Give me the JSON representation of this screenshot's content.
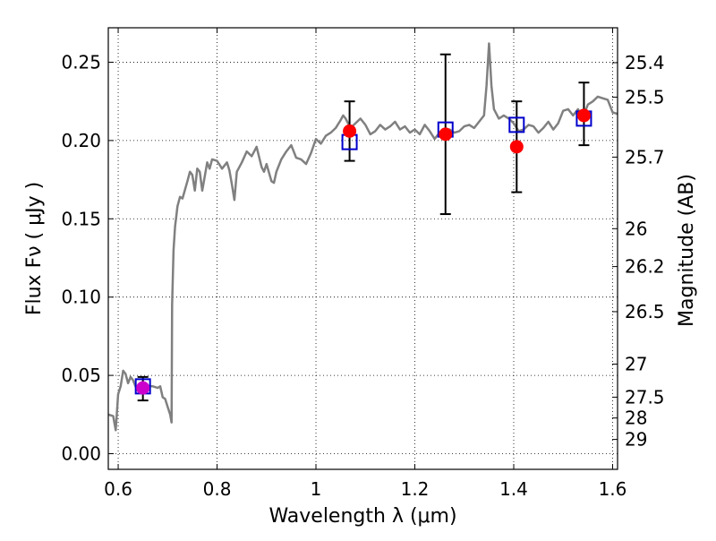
{
  "chart_data": {
    "type": "scatter",
    "title": "",
    "xlabel": "Wavelength  λ (μm)",
    "ylabel": "Flux  Fν  ( μJy )",
    "ylabel_right": "Magnitude (AB)",
    "xlim": [
      0.58,
      1.61
    ],
    "ylim": [
      -0.01,
      0.272
    ],
    "grid": true,
    "x_ticks": [
      0.6,
      0.8,
      1.0,
      1.2,
      1.4,
      1.6
    ],
    "x_tick_labels": [
      "0.6",
      "0.8",
      "1",
      "1.2",
      "1.4",
      "1.6"
    ],
    "y_ticks": [
      0.0,
      0.05,
      0.1,
      0.15,
      0.2,
      0.25
    ],
    "y_tick_labels": [
      "0.00",
      "0.05",
      "0.10",
      "0.15",
      "0.20",
      "0.25"
    ],
    "right_ticks": [
      {
        "label": "25.4",
        "flux": 0.2497
      },
      {
        "label": "25.5",
        "flux": 0.2277
      },
      {
        "label": "25.7",
        "flux": 0.1894
      },
      {
        "label": "26",
        "flux": 0.1437
      },
      {
        "label": "26.2",
        "flux": 0.1195
      },
      {
        "label": "26.5",
        "flux": 0.0907
      },
      {
        "label": "27",
        "flux": 0.0572
      },
      {
        "label": "27.5",
        "flux": 0.0361
      },
      {
        "label": "28",
        "flux": 0.0228
      },
      {
        "label": "29",
        "flux": 0.0091
      }
    ],
    "model_spectrum": {
      "color": "#808080",
      "points": [
        [
          0.58,
          0.025
        ],
        [
          0.59,
          0.024
        ],
        [
          0.595,
          0.015
        ],
        [
          0.6,
          0.038
        ],
        [
          0.605,
          0.043
        ],
        [
          0.61,
          0.053
        ],
        [
          0.615,
          0.051
        ],
        [
          0.62,
          0.045
        ],
        [
          0.625,
          0.049
        ],
        [
          0.63,
          0.047
        ],
        [
          0.635,
          0.043
        ],
        [
          0.64,
          0.04
        ],
        [
          0.65,
          0.04
        ],
        [
          0.66,
          0.043
        ],
        [
          0.67,
          0.043
        ],
        [
          0.68,
          0.042
        ],
        [
          0.685,
          0.043
        ],
        [
          0.69,
          0.036
        ],
        [
          0.695,
          0.035
        ],
        [
          0.7,
          0.03
        ],
        [
          0.705,
          0.025
        ],
        [
          0.708,
          0.02
        ],
        [
          0.709,
          0.095
        ],
        [
          0.712,
          0.13
        ],
        [
          0.715,
          0.145
        ],
        [
          0.72,
          0.158
        ],
        [
          0.725,
          0.164
        ],
        [
          0.73,
          0.163
        ],
        [
          0.74,
          0.174
        ],
        [
          0.745,
          0.18
        ],
        [
          0.75,
          0.178
        ],
        [
          0.755,
          0.168
        ],
        [
          0.76,
          0.182
        ],
        [
          0.765,
          0.18
        ],
        [
          0.77,
          0.168
        ],
        [
          0.78,
          0.186
        ],
        [
          0.785,
          0.182
        ],
        [
          0.79,
          0.188
        ],
        [
          0.8,
          0.187
        ],
        [
          0.81,
          0.182
        ],
        [
          0.82,
          0.186
        ],
        [
          0.825,
          0.181
        ],
        [
          0.83,
          0.172
        ],
        [
          0.835,
          0.162
        ],
        [
          0.84,
          0.18
        ],
        [
          0.85,
          0.186
        ],
        [
          0.86,
          0.193
        ],
        [
          0.87,
          0.19
        ],
        [
          0.88,
          0.196
        ],
        [
          0.89,
          0.183
        ],
        [
          0.895,
          0.18
        ],
        [
          0.9,
          0.185
        ],
        [
          0.91,
          0.174
        ],
        [
          0.915,
          0.173
        ],
        [
          0.92,
          0.18
        ],
        [
          0.93,
          0.188
        ],
        [
          0.94,
          0.193
        ],
        [
          0.95,
          0.197
        ],
        [
          0.96,
          0.189
        ],
        [
          0.97,
          0.188
        ],
        [
          0.98,
          0.185
        ],
        [
          0.99,
          0.192
        ],
        [
          1.0,
          0.201
        ],
        [
          1.01,
          0.198
        ],
        [
          1.02,
          0.203
        ],
        [
          1.03,
          0.205
        ],
        [
          1.04,
          0.208
        ],
        [
          1.05,
          0.213
        ],
        [
          1.055,
          0.216
        ],
        [
          1.06,
          0.214
        ],
        [
          1.07,
          0.208
        ],
        [
          1.08,
          0.211
        ],
        [
          1.09,
          0.214
        ],
        [
          1.1,
          0.21
        ],
        [
          1.11,
          0.204
        ],
        [
          1.12,
          0.206
        ],
        [
          1.13,
          0.21
        ],
        [
          1.14,
          0.207
        ],
        [
          1.15,
          0.209
        ],
        [
          1.16,
          0.212
        ],
        [
          1.17,
          0.207
        ],
        [
          1.18,
          0.209
        ],
        [
          1.19,
          0.205
        ],
        [
          1.2,
          0.207
        ],
        [
          1.21,
          0.204
        ],
        [
          1.22,
          0.21
        ],
        [
          1.23,
          0.206
        ],
        [
          1.24,
          0.201
        ],
        [
          1.25,
          0.205
        ],
        [
          1.26,
          0.203
        ],
        [
          1.27,
          0.207
        ],
        [
          1.28,
          0.205
        ],
        [
          1.29,
          0.206
        ],
        [
          1.3,
          0.209
        ],
        [
          1.31,
          0.21
        ],
        [
          1.32,
          0.208
        ],
        [
          1.33,
          0.212
        ],
        [
          1.34,
          0.216
        ],
        [
          1.345,
          0.235
        ],
        [
          1.35,
          0.262
        ],
        [
          1.355,
          0.235
        ],
        [
          1.36,
          0.22
        ],
        [
          1.37,
          0.214
        ],
        [
          1.38,
          0.216
        ],
        [
          1.39,
          0.214
        ],
        [
          1.4,
          0.211
        ],
        [
          1.41,
          0.206
        ],
        [
          1.42,
          0.207
        ],
        [
          1.43,
          0.21
        ],
        [
          1.44,
          0.209
        ],
        [
          1.45,
          0.205
        ],
        [
          1.46,
          0.208
        ],
        [
          1.47,
          0.212
        ],
        [
          1.48,
          0.207
        ],
        [
          1.49,
          0.211
        ],
        [
          1.5,
          0.219
        ],
        [
          1.51,
          0.22
        ],
        [
          1.52,
          0.216
        ],
        [
          1.53,
          0.22
        ],
        [
          1.54,
          0.215
        ],
        [
          1.55,
          0.223
        ],
        [
          1.56,
          0.225
        ],
        [
          1.57,
          0.228
        ],
        [
          1.58,
          0.227
        ],
        [
          1.59,
          0.226
        ],
        [
          1.6,
          0.218
        ],
        [
          1.61,
          0.217
        ]
      ]
    },
    "model_photometry": {
      "marker": "open-square",
      "color": "#0000cc",
      "points": [
        {
          "x": 0.65,
          "y": 0.043
        },
        {
          "x": 1.068,
          "y": 0.199
        },
        {
          "x": 1.262,
          "y": 0.207
        },
        {
          "x": 1.406,
          "y": 0.21
        },
        {
          "x": 1.542,
          "y": 0.214
        }
      ]
    },
    "observed_photometry": [
      {
        "x": 0.65,
        "y": 0.042,
        "yerr_low": 0.034,
        "yerr_high": 0.049,
        "color": "#cc00cc"
      },
      {
        "x": 1.068,
        "y": 0.206,
        "yerr_low": 0.187,
        "yerr_high": 0.225,
        "color": "#ff0000"
      },
      {
        "x": 1.262,
        "y": 0.204,
        "yerr_low": 0.153,
        "yerr_high": 0.255,
        "color": "#ff0000"
      },
      {
        "x": 1.406,
        "y": 0.196,
        "yerr_low": 0.167,
        "yerr_high": 0.225,
        "color": "#ff0000"
      },
      {
        "x": 1.542,
        "y": 0.216,
        "yerr_low": 0.197,
        "yerr_high": 0.237,
        "color": "#ff0000"
      }
    ]
  }
}
